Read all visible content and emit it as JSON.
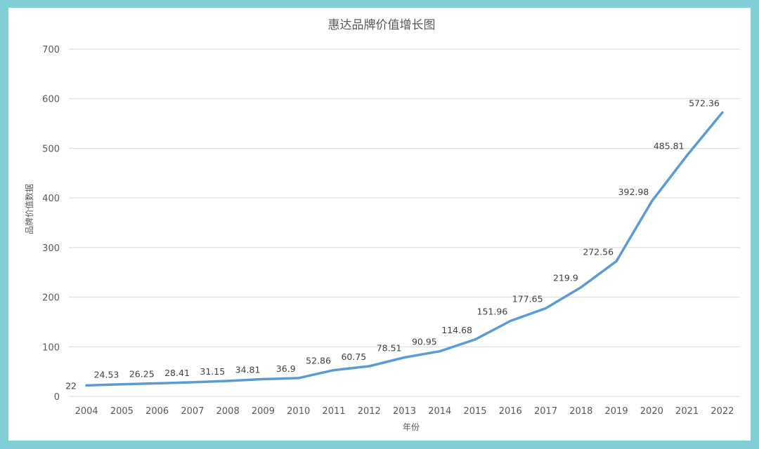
{
  "chart_data": {
    "type": "line",
    "title": "惠达品牌价值增长图",
    "xlabel": "年份",
    "ylabel": "品牌价值数据",
    "ylim": [
      0,
      700
    ],
    "yticks": [
      0,
      100,
      200,
      300,
      400,
      500,
      600,
      700
    ],
    "grid": true,
    "legend": "none",
    "series_color": "#5b9bd5",
    "border_color": "#7fcfd4",
    "categories": [
      "2004",
      "2005",
      "2006",
      "2007",
      "2008",
      "2009",
      "2010",
      "2011",
      "2012",
      "2013",
      "2014",
      "2015",
      "2016",
      "2017",
      "2018",
      "2019",
      "2020",
      "2021",
      "2022"
    ],
    "series": [
      {
        "values": [
          22,
          24.53,
          26.25,
          28.41,
          31.15,
          34.81,
          36.9,
          52.86,
          60.75,
          78.51,
          90.95,
          114.68,
          151.96,
          177.65,
          219.9,
          272.56,
          392.98,
          485.81,
          572.36
        ]
      }
    ]
  }
}
